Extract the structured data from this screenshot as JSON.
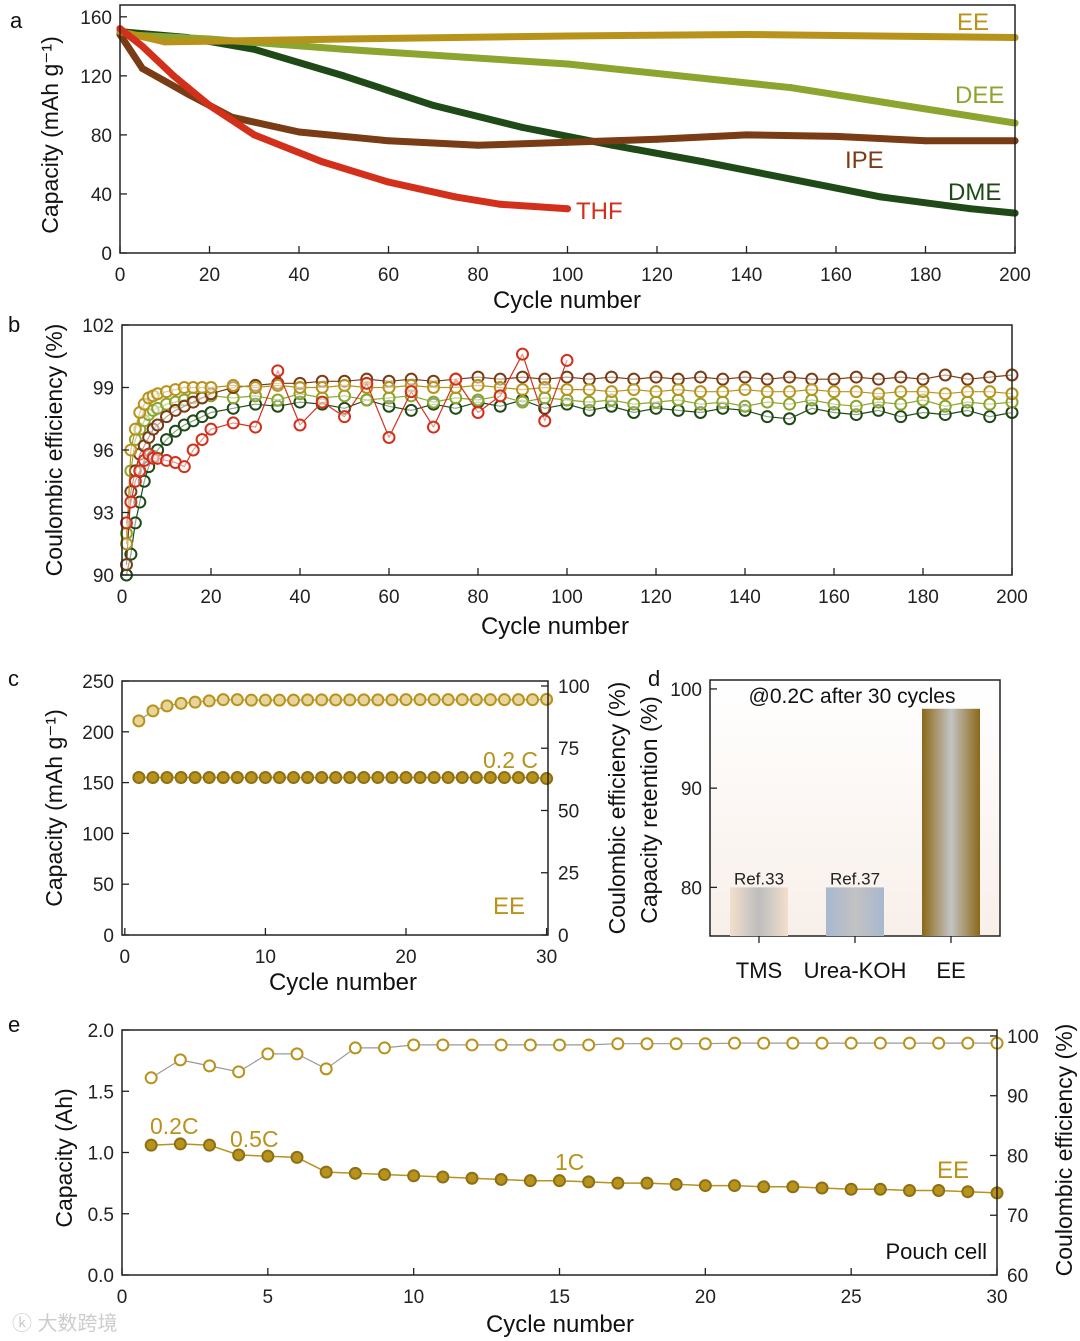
{
  "chart_data": [
    {
      "panel": "a",
      "type": "line",
      "xlabel": "Cycle number",
      "ylabel": "Capacity (mAh g⁻¹)",
      "xlim": [
        0,
        200
      ],
      "ylim": [
        0,
        168
      ],
      "xticks": [
        0,
        20,
        40,
        60,
        80,
        100,
        120,
        140,
        160,
        180,
        200
      ],
      "yticks": [
        0,
        40,
        80,
        120,
        160
      ],
      "series": [
        {
          "name": "DME",
          "color": "#1f4a18",
          "x": [
            0,
            15,
            30,
            50,
            70,
            90,
            110,
            130,
            150,
            170,
            190,
            200
          ],
          "y": [
            150,
            146,
            138,
            120,
            100,
            85,
            73,
            62,
            50,
            38,
            30,
            27
          ]
        },
        {
          "name": "DEE",
          "color": "#8ca52e",
          "x": [
            0,
            20,
            50,
            100,
            150,
            200
          ],
          "y": [
            148,
            145,
            138,
            128,
            112,
            88
          ]
        },
        {
          "name": "IPE",
          "color": "#7a3c15",
          "x": [
            0,
            5,
            15,
            25,
            40,
            60,
            80,
            100,
            120,
            140,
            160,
            180,
            200
          ],
          "y": [
            148,
            125,
            108,
            92,
            82,
            76,
            73,
            75,
            77,
            80,
            79,
            76,
            76
          ]
        },
        {
          "name": "EE",
          "color": "#b8931c",
          "x": [
            0,
            10,
            50,
            100,
            140,
            200
          ],
          "y": [
            150,
            143,
            145,
            147,
            148,
            146
          ]
        },
        {
          "name": "THF",
          "color": "#d3301c",
          "x": [
            0,
            5,
            12,
            20,
            30,
            45,
            60,
            75,
            85,
            100
          ],
          "y": [
            152,
            140,
            120,
            100,
            80,
            62,
            48,
            38,
            33,
            30
          ]
        }
      ]
    },
    {
      "panel": "b",
      "type": "scatter",
      "xlabel": "Cycle number",
      "ylabel": "Coulombic efficiency (%)",
      "xlim": [
        0,
        200
      ],
      "ylim": [
        90,
        102
      ],
      "xticks": [
        0,
        20,
        40,
        60,
        80,
        100,
        120,
        140,
        160,
        180,
        200
      ],
      "yticks": [
        90,
        93,
        96,
        99,
        102
      ],
      "x": [
        1,
        2,
        3,
        4,
        5,
        6,
        7,
        8,
        10,
        12,
        14,
        16,
        18,
        20,
        25,
        30,
        35,
        40,
        45,
        50,
        55,
        60,
        65,
        70,
        75,
        80,
        85,
        90,
        95,
        100,
        105,
        110,
        115,
        120,
        125,
        130,
        135,
        140,
        145,
        150,
        155,
        160,
        165,
        170,
        175,
        180,
        185,
        190,
        195,
        200
      ],
      "series": [
        {
          "name": "DME",
          "color": "#1f4a18",
          "y": [
            90,
            91,
            92.5,
            93.5,
            94.5,
            95.2,
            95.7,
            96,
            96.5,
            96.9,
            97.2,
            97.4,
            97.6,
            97.8,
            98,
            98.2,
            98.1,
            98.3,
            98.2,
            98,
            98.4,
            98.1,
            97.9,
            98.2,
            98,
            98.3,
            98.1,
            98.4,
            98,
            98.2,
            97.9,
            98.1,
            97.8,
            98,
            97.9,
            97.8,
            98,
            97.9,
            97.6,
            97.5,
            98,
            97.8,
            97.7,
            97.9,
            97.6,
            97.8,
            97.7,
            97.9,
            97.6,
            97.8
          ]
        },
        {
          "name": "DEE",
          "color": "#8ca52e",
          "y": [
            92,
            95,
            96.5,
            97,
            97.4,
            97.7,
            97.9,
            98,
            98.2,
            98.3,
            98.4,
            98.5,
            98.5,
            98.6,
            98.5,
            98.6,
            98.4,
            98.7,
            98.5,
            98.6,
            98.4,
            98.5,
            98.6,
            98.3,
            98.5,
            98.4,
            98.6,
            98.3,
            98.5,
            98.4,
            98.3,
            98.4,
            98.2,
            98.3,
            98.4,
            98.2,
            98.3,
            98.1,
            98.3,
            98.2,
            98.4,
            98.2,
            98.1,
            98.3,
            98.2,
            98.4,
            98.1,
            98.3,
            98.2,
            98.3
          ]
        },
        {
          "name": "IPE",
          "color": "#7a3c15",
          "y": [
            90.5,
            94,
            95,
            95.8,
            96.2,
            96.6,
            97,
            97.2,
            97.6,
            97.9,
            98.1,
            98.3,
            98.5,
            98.7,
            99,
            99.1,
            99.2,
            99.2,
            99.3,
            99.3,
            99.4,
            99.3,
            99.4,
            99.3,
            99.4,
            99.5,
            99.4,
            99.5,
            99.4,
            99.5,
            99.4,
            99.5,
            99.4,
            99.5,
            99.4,
            99.5,
            99.4,
            99.5,
            99.4,
            99.5,
            99.4,
            99.4,
            99.5,
            99.4,
            99.5,
            99.4,
            99.6,
            99.4,
            99.5,
            99.6
          ]
        },
        {
          "name": "EE",
          "color": "#b8931c",
          "y": [
            91.5,
            96,
            97,
            97.8,
            98.2,
            98.5,
            98.6,
            98.7,
            98.8,
            98.9,
            99,
            99,
            99,
            99,
            99.1,
            99,
            99.1,
            99,
            99,
            99.1,
            99,
            99,
            99.1,
            99,
            99,
            99.1,
            99,
            98.9,
            99,
            98.9,
            98.9,
            98.8,
            98.9,
            98.8,
            98.9,
            98.8,
            98.8,
            98.9,
            98.8,
            98.8,
            98.9,
            98.8,
            98.8,
            98.7,
            98.8,
            98.8,
            98.7,
            98.8,
            98.8,
            98.7
          ]
        },
        {
          "name": "THF",
          "color": "#d3301c",
          "y": [
            92.5,
            93.5,
            94.5,
            95,
            95.5,
            95.8,
            95.6,
            95.6,
            95.5,
            95.4,
            95.2,
            96,
            96.5,
            97,
            97.3,
            97.1,
            99.8,
            97.2,
            98.3,
            97.6,
            99.2,
            96.6,
            98.8,
            97.1,
            99.4,
            97.8,
            98.6,
            100.6,
            97.4,
            100.3
          ]
        }
      ]
    },
    {
      "panel": "c",
      "type": "scatter",
      "xlabel": "Cycle number",
      "ylabel": "Capacity (mAh g⁻¹)",
      "y2label": "Coulombic efficiency (%)",
      "xlim": [
        0,
        30
      ],
      "ylim": [
        0,
        250
      ],
      "y2lim": [
        0,
        100
      ],
      "xticks": [
        0,
        10,
        20,
        30
      ],
      "yticks": [
        0,
        50,
        100,
        150,
        200,
        250
      ],
      "y2ticks": [
        0,
        25,
        50,
        75,
        100
      ],
      "annotations": [
        "0.2 C",
        "EE"
      ],
      "x": [
        1,
        2,
        3,
        4,
        5,
        6,
        7,
        8,
        9,
        10,
        11,
        12,
        13,
        14,
        15,
        16,
        17,
        18,
        19,
        20,
        21,
        22,
        23,
        24,
        25,
        26,
        27,
        28,
        29,
        30
      ],
      "capacity": [
        155,
        155,
        155,
        155,
        155,
        155,
        155,
        155,
        155,
        155,
        155,
        155,
        155,
        155,
        155,
        155,
        155,
        155,
        155,
        155,
        155,
        155,
        155,
        155,
        155,
        155,
        155,
        155,
        155,
        154
      ],
      "ce": [
        86,
        90,
        92,
        93,
        93.5,
        94,
        94.5,
        94.5,
        94.3,
        94.3,
        94.3,
        94.3,
        94.4,
        94.4,
        94.4,
        94.4,
        94.4,
        94.4,
        94.4,
        94.5,
        94.5,
        94.5,
        94.5,
        94.5,
        94.5,
        94.5,
        94.5,
        94.5,
        94.5,
        94.6
      ],
      "color": "#b8931c"
    },
    {
      "panel": "d",
      "type": "bar",
      "title": "@0.2C after 30 cycles",
      "ylabel": "Capacity retention (%)",
      "ylim": [
        75,
        101
      ],
      "yticks": [
        80,
        90,
        100
      ],
      "categories": [
        "TMS",
        "Urea-KOH",
        "EE"
      ],
      "values": [
        80,
        80,
        98
      ],
      "bar_labels": [
        "Ref.33",
        "Ref.37",
        ""
      ]
    },
    {
      "panel": "e",
      "type": "scatter",
      "xlabel": "Cycle number",
      "ylabel": "Capacity (Ah)",
      "y2label": "Coulombic efficiency (%)",
      "xlim": [
        0,
        30
      ],
      "ylim": [
        0,
        2.0
      ],
      "y2lim": [
        60,
        101
      ],
      "xticks": [
        0,
        5,
        10,
        15,
        20,
        25,
        30
      ],
      "yticks": [
        0.0,
        0.5,
        1.0,
        1.5,
        2.0
      ],
      "y2ticks": [
        60,
        70,
        80,
        90,
        100
      ],
      "annotations": [
        "0.2C",
        "0.5C",
        "1C",
        "EE",
        "Pouch cell"
      ],
      "x": [
        1,
        2,
        3,
        4,
        5,
        6,
        7,
        8,
        9,
        10,
        11,
        12,
        13,
        14,
        15,
        16,
        17,
        18,
        19,
        20,
        21,
        22,
        23,
        24,
        25,
        26,
        27,
        28,
        29,
        30
      ],
      "capacity": [
        1.06,
        1.07,
        1.06,
        0.98,
        0.97,
        0.96,
        0.84,
        0.83,
        0.82,
        0.81,
        0.8,
        0.79,
        0.78,
        0.77,
        0.77,
        0.76,
        0.75,
        0.75,
        0.74,
        0.73,
        0.73,
        0.72,
        0.72,
        0.71,
        0.7,
        0.7,
        0.69,
        0.69,
        0.68,
        0.67
      ],
      "ce": [
        93,
        96,
        95,
        94,
        97,
        97,
        94.5,
        98,
        98,
        98.5,
        98.5,
        98.5,
        98.5,
        98.5,
        98.5,
        98.5,
        98.7,
        98.7,
        98.7,
        98.7,
        98.8,
        98.8,
        98.8,
        98.8,
        98.8,
        98.8,
        98.8,
        98.8,
        98.8,
        98.8
      ],
      "color": "#b8931c"
    }
  ],
  "panel_letters": [
    "a",
    "b",
    "c",
    "d",
    "e"
  ],
  "watermark": "大数跨境"
}
